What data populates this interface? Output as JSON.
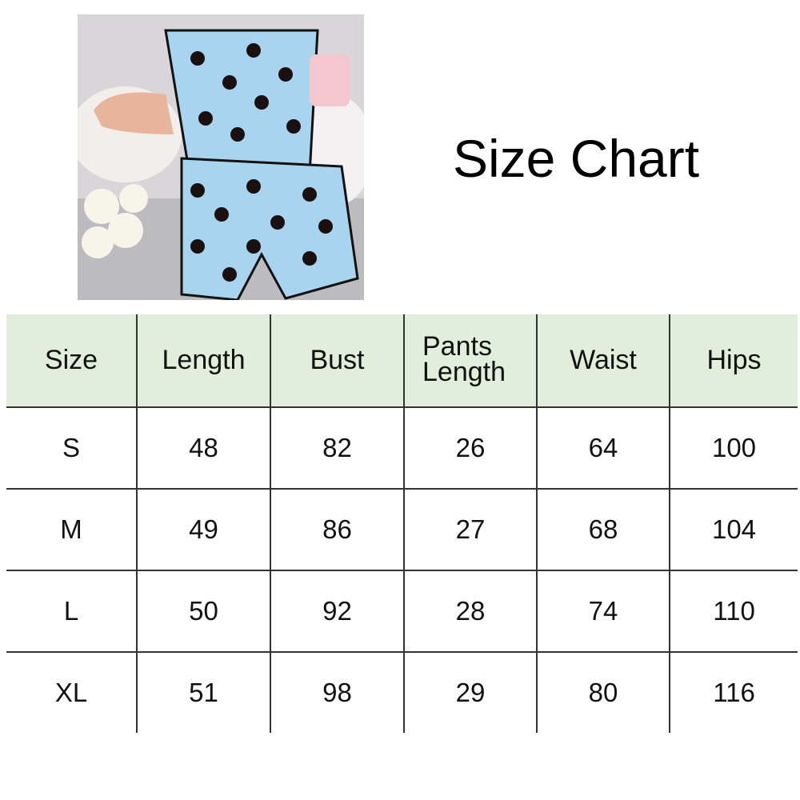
{
  "title": "Size Chart",
  "product_image": {
    "description_icon": "pajama-photo",
    "colors": {
      "fabric": "#a9d4ef",
      "hearts": "#1a1010",
      "mug": "#f4c7cf"
    }
  },
  "table": {
    "header_bg": "#e1eedb",
    "headers": [
      "Size",
      "Length",
      "Bust",
      "Pants Length",
      "Waist",
      "Hips"
    ],
    "rows": [
      [
        "S",
        "48",
        "82",
        "26",
        "64",
        "100"
      ],
      [
        "M",
        "49",
        "86",
        "27",
        "68",
        "104"
      ],
      [
        "L",
        "50",
        "92",
        "28",
        "74",
        "110"
      ],
      [
        "XL",
        "51",
        "98",
        "29",
        "80",
        "116"
      ]
    ]
  }
}
